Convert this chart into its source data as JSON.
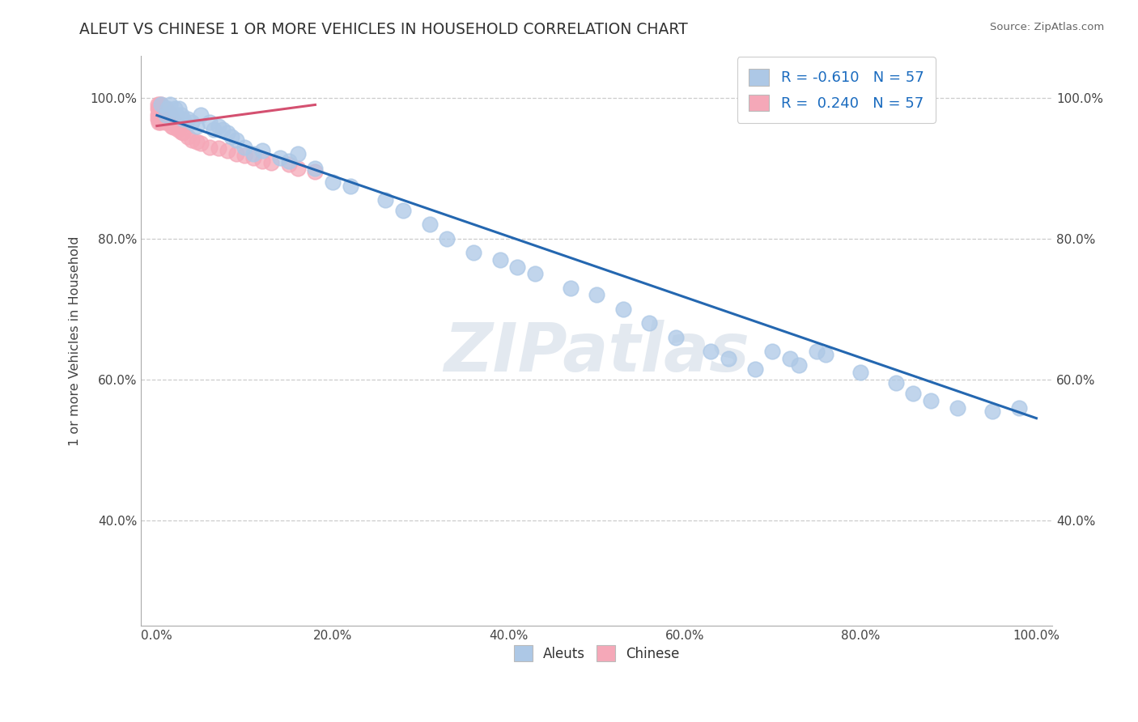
{
  "title": "ALEUT VS CHINESE 1 OR MORE VEHICLES IN HOUSEHOLD CORRELATION CHART",
  "source": "Source: ZipAtlas.com",
  "ylabel": "1 or more Vehicles in Household",
  "x_tick_vals": [
    0.0,
    0.2,
    0.4,
    0.6,
    0.8,
    1.0
  ],
  "x_tick_labels": [
    "0.0%",
    "20.0%",
    "40.0%",
    "60.0%",
    "80.0%",
    "100.0%"
  ],
  "y_tick_vals": [
    0.4,
    0.6,
    0.8,
    1.0
  ],
  "y_tick_labels": [
    "40.0%",
    "60.0%",
    "80.0%",
    "100.0%"
  ],
  "R_aleut": -0.61,
  "N_aleut": 57,
  "R_chinese": 0.24,
  "N_chinese": 57,
  "aleut_color": "#adc8e6",
  "chinese_color": "#f5a8b8",
  "trendline_aleut_color": "#2467b0",
  "trendline_chinese_color": "#d45070",
  "watermark_text": "ZIPatlas",
  "aleut_x": [
    0.005,
    0.01,
    0.012,
    0.015,
    0.02,
    0.022,
    0.025,
    0.028,
    0.03,
    0.035,
    0.04,
    0.045,
    0.05,
    0.06,
    0.065,
    0.07,
    0.075,
    0.08,
    0.085,
    0.09,
    0.1,
    0.11,
    0.12,
    0.14,
    0.15,
    0.16,
    0.18,
    0.2,
    0.22,
    0.26,
    0.28,
    0.31,
    0.33,
    0.36,
    0.39,
    0.41,
    0.43,
    0.47,
    0.5,
    0.53,
    0.56,
    0.59,
    0.63,
    0.65,
    0.68,
    0.7,
    0.72,
    0.73,
    0.75,
    0.76,
    0.8,
    0.84,
    0.86,
    0.88,
    0.91,
    0.95,
    0.98
  ],
  "aleut_y": [
    0.99,
    0.975,
    0.985,
    0.99,
    0.985,
    0.975,
    0.985,
    0.975,
    0.97,
    0.97,
    0.965,
    0.96,
    0.975,
    0.965,
    0.955,
    0.96,
    0.955,
    0.95,
    0.945,
    0.94,
    0.93,
    0.92,
    0.925,
    0.915,
    0.91,
    0.92,
    0.9,
    0.88,
    0.875,
    0.855,
    0.84,
    0.82,
    0.8,
    0.78,
    0.77,
    0.76,
    0.75,
    0.73,
    0.72,
    0.7,
    0.68,
    0.66,
    0.64,
    0.63,
    0.615,
    0.64,
    0.63,
    0.62,
    0.64,
    0.635,
    0.61,
    0.595,
    0.58,
    0.57,
    0.56,
    0.555,
    0.56
  ],
  "chinese_x": [
    0.001,
    0.001,
    0.001,
    0.001,
    0.002,
    0.002,
    0.002,
    0.002,
    0.003,
    0.003,
    0.003,
    0.004,
    0.004,
    0.004,
    0.005,
    0.005,
    0.005,
    0.006,
    0.006,
    0.007,
    0.007,
    0.008,
    0.008,
    0.009,
    0.009,
    0.01,
    0.01,
    0.011,
    0.012,
    0.013,
    0.014,
    0.015,
    0.016,
    0.017,
    0.018,
    0.019,
    0.02,
    0.022,
    0.024,
    0.026,
    0.028,
    0.03,
    0.035,
    0.04,
    0.045,
    0.05,
    0.06,
    0.07,
    0.08,
    0.09,
    0.1,
    0.11,
    0.12,
    0.13,
    0.15,
    0.16,
    0.18
  ],
  "chinese_y": [
    0.99,
    0.985,
    0.975,
    0.97,
    0.985,
    0.978,
    0.97,
    0.965,
    0.99,
    0.98,
    0.975,
    0.985,
    0.975,
    0.965,
    0.99,
    0.982,
    0.975,
    0.985,
    0.97,
    0.985,
    0.968,
    0.982,
    0.97,
    0.978,
    0.965,
    0.985,
    0.975,
    0.97,
    0.978,
    0.965,
    0.97,
    0.978,
    0.965,
    0.96,
    0.97,
    0.958,
    0.965,
    0.96,
    0.955,
    0.958,
    0.952,
    0.95,
    0.945,
    0.94,
    0.938,
    0.935,
    0.93,
    0.928,
    0.925,
    0.92,
    0.918,
    0.915,
    0.91,
    0.908,
    0.905,
    0.9,
    0.895
  ],
  "trendline_aleut_x0": 0.0,
  "trendline_aleut_y0": 0.975,
  "trendline_aleut_x1": 1.0,
  "trendline_aleut_y1": 0.545,
  "trendline_chinese_x0": 0.0,
  "trendline_chinese_y0": 0.96,
  "trendline_chinese_x1": 0.18,
  "trendline_chinese_y1": 0.99
}
